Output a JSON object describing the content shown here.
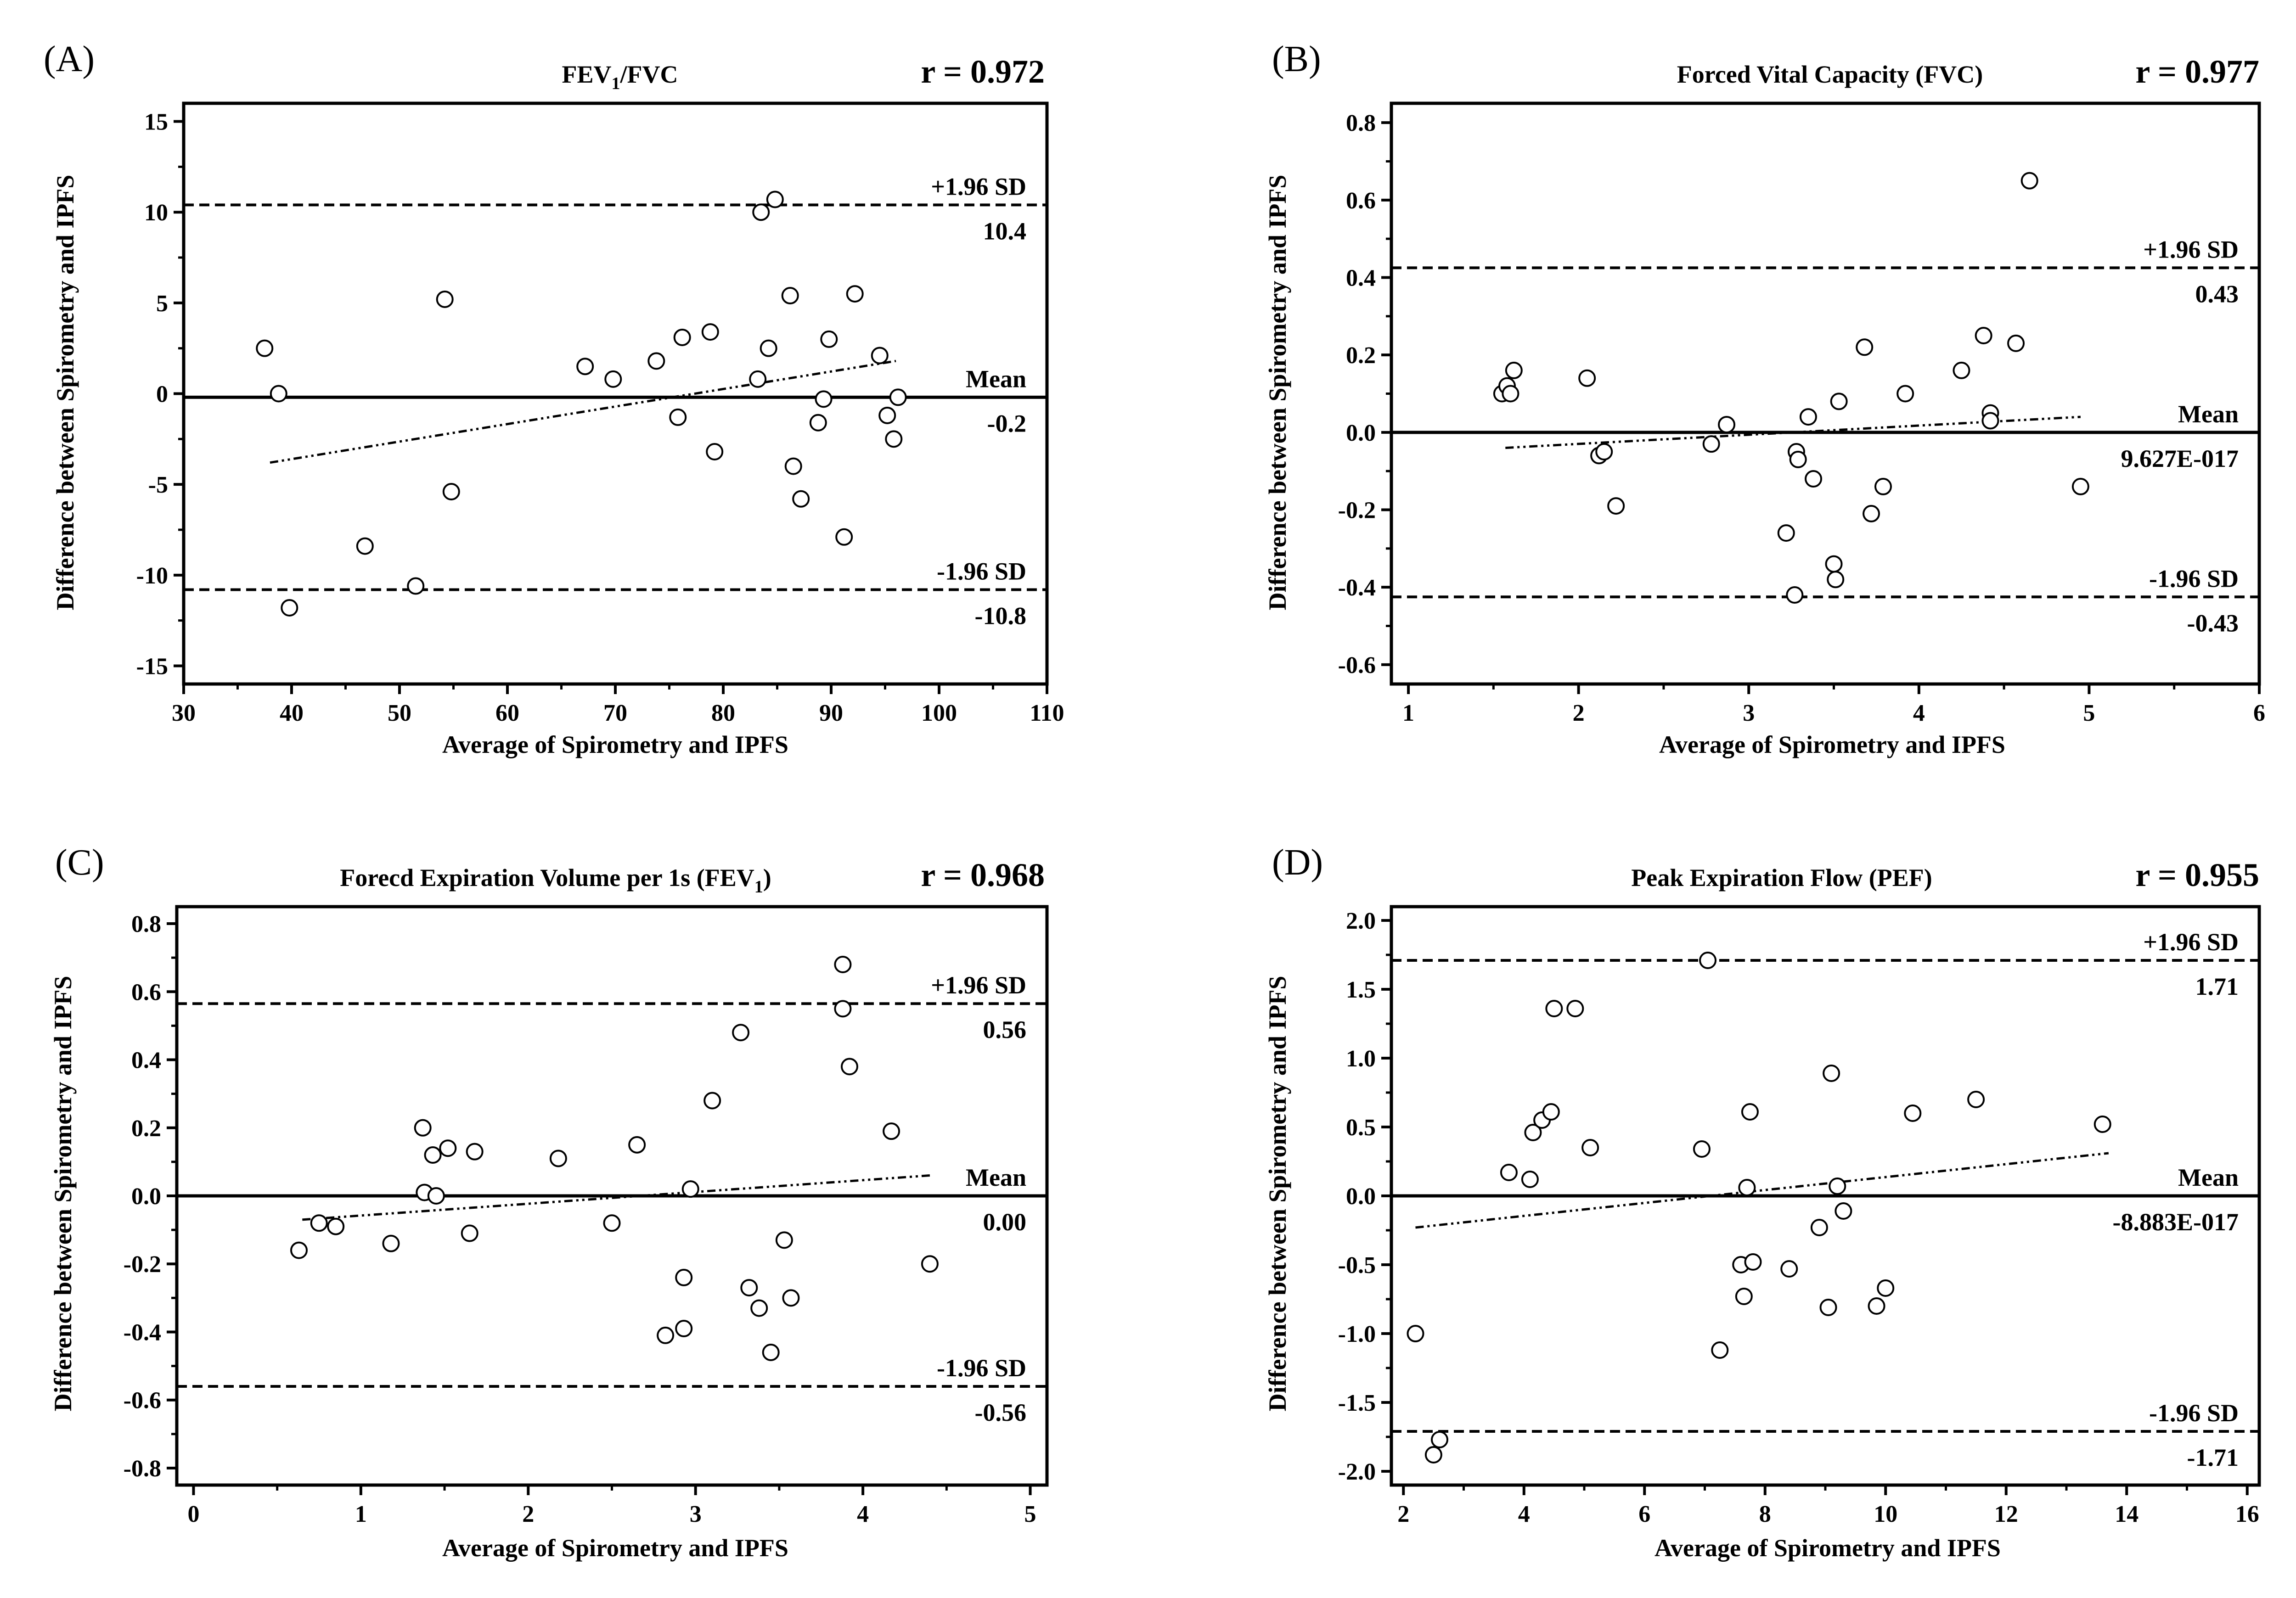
{
  "chart_data": [
    {
      "type": "scatter",
      "panel_label": "(A)",
      "title": "FEV",
      "title_sub": "1",
      "title_after": "/FVC",
      "r_label": "r = 0.972",
      "xlabel": "Average of Spirometry and IPFS",
      "ylabel": "Difference between Spirometry and IPFS",
      "xlim": [
        30,
        110
      ],
      "ylim": [
        -16,
        16
      ],
      "xticks": [
        30,
        40,
        50,
        60,
        70,
        80,
        90,
        100,
        110
      ],
      "xtick_labels": [
        "30",
        "40",
        "50",
        "60",
        "70",
        "80",
        "90",
        "100",
        "110"
      ],
      "yticks": [
        -15,
        -10,
        -5,
        0,
        5,
        10,
        15
      ],
      "ytick_labels": [
        "-15",
        "-10",
        "-5",
        "0",
        "5",
        "10",
        "15"
      ],
      "yminor": [
        -12.5,
        -7.5,
        -2.5,
        2.5,
        7.5,
        12.5
      ],
      "xminor": [
        35,
        45,
        55,
        65,
        75,
        85,
        95,
        105
      ],
      "mean": -0.2,
      "upper": 10.4,
      "lower": -10.8,
      "upper_label": "+1.96 SD",
      "upper_value_label": "10.4",
      "mean_label": "Mean",
      "mean_value_label": "-0.2",
      "lower_label": "-1.96 SD",
      "lower_value_label": "-10.8",
      "trend": [
        [
          38,
          -3.8
        ],
        [
          96,
          1.8
        ]
      ],
      "points": [
        [
          37.5,
          2.5
        ],
        [
          38.8,
          0.0
        ],
        [
          39.8,
          -11.8
        ],
        [
          46.8,
          -8.4
        ],
        [
          51.5,
          -10.6
        ],
        [
          54.2,
          5.2
        ],
        [
          54.8,
          -5.4
        ],
        [
          67.2,
          1.5
        ],
        [
          69.8,
          0.8
        ],
        [
          73.8,
          1.8
        ],
        [
          75.8,
          -1.3
        ],
        [
          76.2,
          3.1
        ],
        [
          78.8,
          3.4
        ],
        [
          79.2,
          -3.2
        ],
        [
          83.2,
          0.8
        ],
        [
          83.5,
          10.0
        ],
        [
          84.2,
          2.5
        ],
        [
          84.8,
          10.7
        ],
        [
          86.2,
          5.4
        ],
        [
          86.5,
          -4.0
        ],
        [
          87.2,
          -5.8
        ],
        [
          88.8,
          -1.6
        ],
        [
          89.3,
          -0.3
        ],
        [
          89.8,
          3.0
        ],
        [
          91.2,
          -7.9
        ],
        [
          92.2,
          5.5
        ],
        [
          94.5,
          2.1
        ],
        [
          95.2,
          -1.2
        ],
        [
          95.8,
          -2.5
        ],
        [
          96.2,
          -0.2
        ]
      ]
    },
    {
      "type": "scatter",
      "panel_label": "(B)",
      "title": "Forced Vital Capacity (FVC)",
      "title_sub": "",
      "title_after": "",
      "r_label": "r = 0.977",
      "xlabel": "Average of Spirometry and IPFS",
      "ylabel": "Difference between Spirometry and IPFS",
      "xlim": [
        0.9,
        6.0
      ],
      "ylim": [
        -0.65,
        0.85
      ],
      "xticks": [
        1,
        2,
        3,
        4,
        5,
        6
      ],
      "xtick_labels": [
        "1",
        "2",
        "3",
        "4",
        "5",
        "6"
      ],
      "yticks": [
        -0.6,
        -0.4,
        -0.2,
        0.0,
        0.2,
        0.4,
        0.6,
        0.8
      ],
      "ytick_labels": [
        "-0.6",
        "-0.4",
        "-0.2",
        "0.0",
        "0.2",
        "0.4",
        "0.6",
        "0.8"
      ],
      "yminor": [
        -0.5,
        -0.3,
        -0.1,
        0.1,
        0.3,
        0.5,
        0.7
      ],
      "xminor": [
        1.5,
        2.5,
        3.5,
        4.5,
        5.5
      ],
      "mean": 0.0,
      "upper": 0.425,
      "lower": -0.425,
      "upper_label": "+1.96 SD",
      "upper_value_label": "0.43",
      "mean_label": "Mean",
      "mean_value_label": "9.627E-017",
      "lower_label": "-1.96 SD",
      "lower_value_label": "-0.43",
      "trend": [
        [
          1.57,
          -0.04
        ],
        [
          4.95,
          0.04
        ]
      ],
      "points": [
        [
          1.55,
          0.1
        ],
        [
          1.58,
          0.12
        ],
        [
          1.6,
          0.1
        ],
        [
          1.62,
          0.16
        ],
        [
          2.05,
          0.14
        ],
        [
          2.12,
          -0.06
        ],
        [
          2.15,
          -0.05
        ],
        [
          2.22,
          -0.19
        ],
        [
          2.78,
          -0.03
        ],
        [
          2.87,
          0.02
        ],
        [
          3.22,
          -0.26
        ],
        [
          3.27,
          -0.42
        ],
        [
          3.28,
          -0.05
        ],
        [
          3.29,
          -0.07
        ],
        [
          3.35,
          0.04
        ],
        [
          3.38,
          -0.12
        ],
        [
          3.5,
          -0.34
        ],
        [
          3.51,
          -0.38
        ],
        [
          3.53,
          0.08
        ],
        [
          3.68,
          0.22
        ],
        [
          3.72,
          -0.21
        ],
        [
          3.79,
          -0.14
        ],
        [
          3.92,
          0.1
        ],
        [
          4.25,
          0.16
        ],
        [
          4.38,
          0.25
        ],
        [
          4.42,
          0.05
        ],
        [
          4.42,
          0.03
        ],
        [
          4.57,
          0.23
        ],
        [
          4.65,
          0.65
        ],
        [
          4.95,
          -0.14
        ]
      ]
    },
    {
      "type": "scatter",
      "panel_label": "(C)",
      "title": "Forecd Expiration Volume per 1s (FEV",
      "title_sub": "1",
      "title_after": ")",
      "r_label": "r = 0.968",
      "xlabel": "Average of Spirometry and IPFS",
      "ylabel": "Difference between Spirometry and IPFS",
      "xlim": [
        -0.1,
        5.1
      ],
      "ylim": [
        -0.85,
        0.85
      ],
      "xticks": [
        0,
        1,
        2,
        3,
        4,
        5
      ],
      "xtick_labels": [
        "0",
        "1",
        "2",
        "3",
        "4",
        "5"
      ],
      "yticks": [
        -0.8,
        -0.6,
        -0.4,
        -0.2,
        0.0,
        0.2,
        0.4,
        0.6,
        0.8
      ],
      "ytick_labels": [
        "-0.8",
        "-0.6",
        "-0.4",
        "-0.2",
        "0.0",
        "0.2",
        "0.4",
        "0.6",
        "0.8"
      ],
      "yminor": [
        -0.7,
        -0.5,
        -0.3,
        -0.1,
        0.1,
        0.3,
        0.5,
        0.7
      ],
      "xminor": [
        0.5,
        1.5,
        2.5,
        3.5,
        4.5
      ],
      "mean": 0.0,
      "upper": 0.565,
      "lower": -0.56,
      "upper_label": "+1.96 SD",
      "upper_value_label": "0.56",
      "mean_label": "Mean",
      "mean_value_label": "0.00",
      "lower_label": "-1.96 SD",
      "lower_value_label": "-0.56",
      "trend": [
        [
          0.65,
          -0.07
        ],
        [
          4.4,
          0.06
        ]
      ],
      "points": [
        [
          0.63,
          -0.16
        ],
        [
          0.75,
          -0.08
        ],
        [
          0.85,
          -0.09
        ],
        [
          1.18,
          -0.14
        ],
        [
          1.37,
          0.2
        ],
        [
          1.38,
          0.01
        ],
        [
          1.43,
          0.12
        ],
        [
          1.45,
          0.0
        ],
        [
          1.52,
          0.14
        ],
        [
          1.65,
          -0.11
        ],
        [
          1.68,
          0.13
        ],
        [
          2.18,
          0.11
        ],
        [
          2.5,
          -0.08
        ],
        [
          2.65,
          0.15
        ],
        [
          2.82,
          -0.41
        ],
        [
          2.93,
          -0.39
        ],
        [
          2.93,
          -0.24
        ],
        [
          2.97,
          0.02
        ],
        [
          3.1,
          0.28
        ],
        [
          3.27,
          0.48
        ],
        [
          3.32,
          -0.27
        ],
        [
          3.38,
          -0.33
        ],
        [
          3.45,
          -0.46
        ],
        [
          3.53,
          -0.13
        ],
        [
          3.57,
          -0.3
        ],
        [
          3.88,
          0.55
        ],
        [
          3.88,
          0.68
        ],
        [
          3.92,
          0.38
        ],
        [
          4.17,
          0.19
        ],
        [
          4.4,
          -0.2
        ]
      ]
    },
    {
      "type": "scatter",
      "panel_label": "(D)",
      "title": "Peak Expiration Flow (PEF)",
      "title_sub": "",
      "title_after": "",
      "r_label": "r = 0.955",
      "xlabel": "Average of Spirometry and IPFS",
      "ylabel": "Difference between Spirometry and IPFS",
      "xlim": [
        1.8,
        16.2
      ],
      "ylim": [
        -2.1,
        2.1
      ],
      "xticks": [
        2,
        4,
        6,
        8,
        10,
        12,
        14,
        16
      ],
      "xtick_labels": [
        "2",
        "4",
        "6",
        "8",
        "10",
        "12",
        "14",
        "16"
      ],
      "yticks": [
        -2.0,
        -1.5,
        -1.0,
        -0.5,
        0.0,
        0.5,
        1.0,
        1.5,
        2.0
      ],
      "ytick_labels": [
        "-2.0",
        "-1.5",
        "-1.0",
        "-0.5",
        "0.0",
        "0.5",
        "1.0",
        "1.5",
        "2.0"
      ],
      "yminor": [
        -1.75,
        -1.25,
        -0.75,
        -0.25,
        0.25,
        0.75,
        1.25,
        1.75
      ],
      "xminor": [
        3,
        5,
        7,
        9,
        11,
        13,
        15
      ],
      "mean": 0.0,
      "upper": 1.71,
      "lower": -1.71,
      "upper_label": "+1.96 SD",
      "upper_value_label": "1.71",
      "mean_label": "Mean",
      "mean_value_label": "-8.883E-017",
      "lower_label": "-1.96 SD",
      "lower_value_label": "-1.71",
      "trend": [
        [
          2.2,
          -0.23
        ],
        [
          13.7,
          0.31
        ]
      ],
      "points": [
        [
          2.2,
          -1.0
        ],
        [
          2.5,
          -1.88
        ],
        [
          2.6,
          -1.77
        ],
        [
          3.75,
          0.17
        ],
        [
          4.1,
          0.12
        ],
        [
          4.15,
          0.46
        ],
        [
          4.3,
          0.55
        ],
        [
          4.45,
          0.61
        ],
        [
          4.5,
          1.36
        ],
        [
          4.85,
          1.36
        ],
        [
          5.1,
          0.35
        ],
        [
          6.95,
          0.34
        ],
        [
          7.05,
          1.71
        ],
        [
          7.25,
          -1.12
        ],
        [
          7.6,
          -0.5
        ],
        [
          7.65,
          -0.73
        ],
        [
          7.7,
          0.06
        ],
        [
          7.75,
          0.61
        ],
        [
          7.8,
          -0.48
        ],
        [
          8.4,
          -0.53
        ],
        [
          8.9,
          -0.23
        ],
        [
          9.05,
          -0.81
        ],
        [
          9.1,
          0.89
        ],
        [
          9.2,
          0.07
        ],
        [
          9.3,
          -0.11
        ],
        [
          9.85,
          -0.8
        ],
        [
          10.0,
          -0.67
        ],
        [
          10.45,
          0.6
        ],
        [
          11.5,
          0.7
        ],
        [
          13.6,
          0.52
        ]
      ]
    }
  ]
}
